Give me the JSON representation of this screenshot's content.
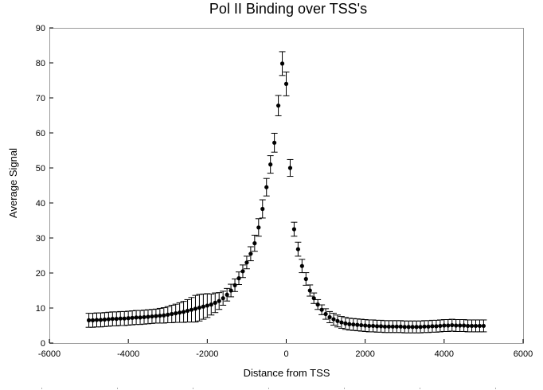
{
  "chart_data": {
    "type": "scatter",
    "title": "Pol II Binding over TSS's",
    "xlabel": "Distance from TSS",
    "ylabel": "Average Signal",
    "xlim": [
      -6000,
      6000
    ],
    "ylim": [
      0,
      90
    ],
    "xticks": [
      -6000,
      -4000,
      -2000,
      0,
      2000,
      4000,
      6000
    ],
    "yticks": [
      0,
      10,
      20,
      30,
      40,
      50,
      60,
      70,
      80,
      90
    ],
    "grid": false,
    "legend": "none",
    "marker_color": "#000000",
    "error_bars": true,
    "series": [
      {
        "x": [
          -5000,
          -4900,
          -4800,
          -4700,
          -4600,
          -4500,
          -4400,
          -4300,
          -4200,
          -4100,
          -4000,
          -3900,
          -3800,
          -3700,
          -3600,
          -3500,
          -3400,
          -3300,
          -3200,
          -3100,
          -3000,
          -2900,
          -2800,
          -2700,
          -2600,
          -2500,
          -2400,
          -2300,
          -2200,
          -2100,
          -2000,
          -1900,
          -1800,
          -1700,
          -1600,
          -1500,
          -1400,
          -1300,
          -1200,
          -1100,
          -1000,
          -900,
          -800,
          -700,
          -600,
          -500,
          -400,
          -300,
          -200,
          -100,
          0,
          100,
          200,
          300,
          400,
          500,
          600,
          700,
          800,
          900,
          1000,
          1100,
          1200,
          1300,
          1400,
          1500,
          1600,
          1700,
          1800,
          1900,
          2000,
          2100,
          2200,
          2300,
          2400,
          2500,
          2600,
          2700,
          2800,
          2900,
          3000,
          3100,
          3200,
          3300,
          3400,
          3500,
          3600,
          3700,
          3800,
          3900,
          4000,
          4100,
          4200,
          4300,
          4400,
          4500,
          4600,
          4700,
          4800,
          4900,
          5000
        ],
        "y": [
          6.5,
          6.5,
          6.6,
          6.6,
          6.7,
          6.8,
          6.9,
          6.9,
          7.0,
          7.0,
          7.1,
          7.2,
          7.3,
          7.3,
          7.4,
          7.5,
          7.6,
          7.7,
          7.8,
          7.9,
          8.1,
          8.3,
          8.5,
          8.7,
          8.9,
          9.2,
          9.5,
          9.8,
          10.1,
          10.4,
          10.7,
          11.0,
          11.5,
          12.0,
          12.8,
          13.8,
          15.0,
          16.5,
          18.5,
          20.5,
          23.0,
          25.5,
          28.5,
          33.0,
          38.3,
          44.5,
          51.0,
          57.2,
          67.8,
          79.8,
          74.0,
          50.0,
          32.5,
          26.8,
          22.0,
          18.3,
          15.0,
          12.8,
          11.0,
          9.5,
          8.3,
          7.4,
          6.8,
          6.3,
          5.9,
          5.6,
          5.4,
          5.3,
          5.2,
          5.1,
          5.0,
          4.9,
          4.9,
          4.8,
          4.8,
          4.7,
          4.7,
          4.7,
          4.7,
          4.7,
          4.6,
          4.6,
          4.6,
          4.6,
          4.6,
          4.7,
          4.7,
          4.8,
          4.8,
          4.9,
          5.0,
          5.0,
          5.1,
          5.0,
          5.0,
          5.0,
          4.9,
          4.9,
          4.9,
          4.9,
          4.9
        ],
        "err": [
          2.0,
          2.0,
          2.0,
          2.0,
          2.0,
          2.0,
          2.0,
          2.0,
          2.0,
          2.0,
          2.0,
          2.0,
          2.0,
          2.0,
          2.0,
          2.0,
          2.0,
          2.0,
          2.1,
          2.2,
          2.3,
          2.5,
          2.6,
          2.8,
          3.0,
          3.2,
          3.5,
          3.8,
          3.8,
          3.6,
          3.4,
          3.0,
          2.8,
          2.4,
          2.0,
          1.8,
          1.8,
          1.8,
          1.8,
          1.8,
          1.8,
          2.0,
          2.3,
          2.5,
          2.6,
          2.5,
          2.5,
          2.7,
          2.9,
          3.4,
          3.4,
          2.4,
          2.0,
          2.0,
          1.9,
          1.8,
          1.6,
          1.5,
          1.4,
          1.4,
          1.5,
          1.6,
          1.7,
          1.7,
          1.7,
          1.7,
          1.7,
          1.7,
          1.7,
          1.7,
          1.7,
          1.7,
          1.7,
          1.7,
          1.7,
          1.7,
          1.7,
          1.7,
          1.7,
          1.7,
          1.7,
          1.7,
          1.7,
          1.7,
          1.7,
          1.7,
          1.7,
          1.7,
          1.7,
          1.7,
          1.7,
          1.7,
          1.7,
          1.7,
          1.7,
          1.7,
          1.7,
          1.7,
          1.7,
          1.7,
          1.7
        ]
      }
    ]
  }
}
